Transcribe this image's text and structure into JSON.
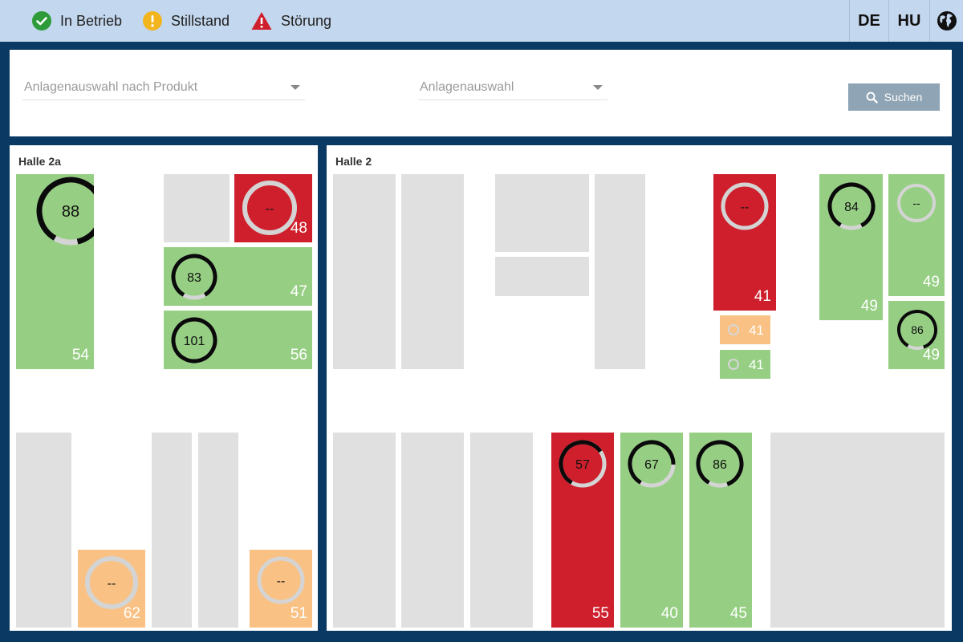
{
  "legend": {
    "running": "In Betrieb",
    "standstill": "Stillstand",
    "fault": "Störung"
  },
  "languages": [
    "DE",
    "HU"
  ],
  "filters": {
    "product_select": "Anlagenauswahl nach Produkt",
    "machine_select": "Anlagenauswahl",
    "search_button": "Suchen"
  },
  "colors": {
    "running": "#96cf83",
    "fault": "#cf1f2d",
    "standstill": "#f9c183",
    "inactive": "#e0e0e0",
    "header_bg": "#c3d7ee",
    "page_bg": "#0a3a63"
  },
  "halle2a": {
    "title": "Halle 2a",
    "tiles": [
      {
        "status": "running",
        "gauge": "88",
        "fill": 0.88,
        "number": "54"
      },
      {
        "status": "inactive"
      },
      {
        "status": "fault",
        "gauge": "--",
        "fill": 0,
        "number": "48"
      },
      {
        "status": "running",
        "gauge": "83",
        "fill": 0.83,
        "number": "47"
      },
      {
        "status": "running",
        "gauge": "101",
        "fill": 1.0,
        "number": "56"
      },
      {
        "status": "inactive"
      },
      {
        "status": "standstill",
        "gauge": "--",
        "fill": 0,
        "number": "62"
      },
      {
        "status": "inactive"
      },
      {
        "status": "inactive"
      },
      {
        "status": "standstill",
        "gauge": "--",
        "fill": 0,
        "number": "51"
      }
    ]
  },
  "halle2": {
    "title": "Halle 2",
    "tiles": [
      {
        "status": "inactive"
      },
      {
        "status": "inactive"
      },
      {
        "status": "inactive"
      },
      {
        "status": "inactive"
      },
      {
        "status": "inactive"
      },
      {
        "status": "fault",
        "gauge": "--",
        "fill": 0,
        "number": "41"
      },
      {
        "status": "standstill",
        "number": "41"
      },
      {
        "status": "running",
        "number": "41"
      },
      {
        "status": "running",
        "gauge": "84",
        "fill": 0.84,
        "number": "49"
      },
      {
        "status": "running",
        "gauge": "--",
        "fill": 0,
        "number": "49"
      },
      {
        "status": "running",
        "gauge": "86",
        "fill": 0.86,
        "number": "49"
      },
      {
        "status": "inactive"
      },
      {
        "status": "inactive"
      },
      {
        "status": "inactive"
      },
      {
        "status": "fault",
        "gauge": "57",
        "fill": 0.57,
        "number": "55"
      },
      {
        "status": "running",
        "gauge": "67",
        "fill": 0.67,
        "number": "40"
      },
      {
        "status": "running",
        "gauge": "86",
        "fill": 0.86,
        "number": "45"
      },
      {
        "status": "inactive"
      }
    ]
  }
}
